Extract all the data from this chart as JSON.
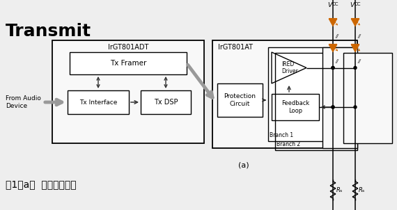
{
  "bg_color": "#eeeeee",
  "title_text": "Transmit",
  "caption_text": "图1（a）  发射器原理图",
  "label_a": "(a)",
  "label_irgt801adt": "IrGT801ADT",
  "label_irgt801at": "IrGT801AT",
  "label_tx_framer": "Tx Framer",
  "label_tx_interface": "Tx Interface",
  "label_tx_dsp": "Tx DSP",
  "label_from_audio": "From Audio\nDevice",
  "label_protection": "Protection\nCircuit",
  "label_ired_driver": "IRED\nDriver",
  "label_feedback": "Feedback\nLoop",
  "label_branch1": "Branch 1",
  "label_branch2": "Branch 2",
  "label_vcc": "V",
  "label_cc": "CC",
  "label_rs": "R",
  "label_s": "s",
  "orange": "#cc6600",
  "dark": "#222222",
  "gray_arrow": "#666666"
}
